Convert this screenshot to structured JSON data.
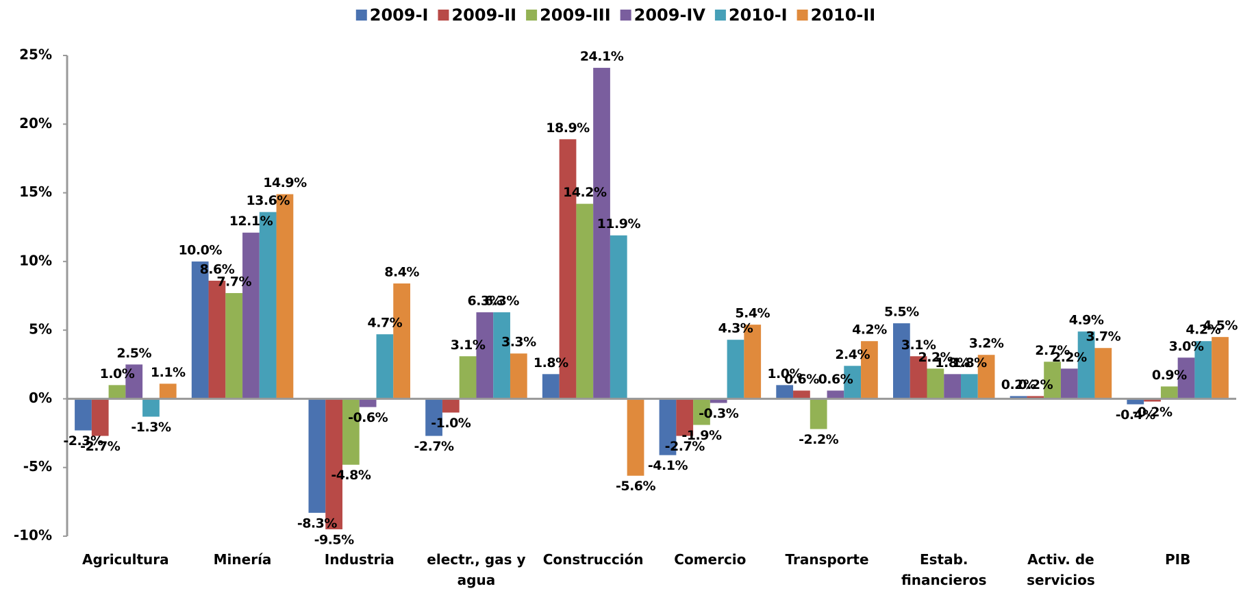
{
  "chart_data": {
    "type": "bar",
    "categories": [
      "Agricultura",
      "Minería",
      "Industria",
      "electr., gas y agua",
      "Construcción",
      "Comercio",
      "Transporte",
      "Estab. financieros",
      "Activ. de servicios",
      "PIB"
    ],
    "series": [
      {
        "name": "2009-I",
        "color": "#4a72b0",
        "label_color": "#000000",
        "values": [
          -2.3,
          10.0,
          -8.3,
          -2.7,
          1.8,
          -4.1,
          1.0,
          5.5,
          0.2,
          -0.4
        ],
        "value_labels": [
          "-2.3%",
          "10.0%",
          "-8.3%",
          "-2.7%",
          "1.8%",
          "-4.1%",
          "1.0%",
          "5.5%",
          "0.2%",
          "-0.4%"
        ]
      },
      {
        "name": "2009-II",
        "color": "#b84a47",
        "label_color": "#ff0000",
        "values": [
          -2.7,
          8.6,
          -9.5,
          -1.0,
          18.9,
          -2.7,
          0.6,
          3.1,
          0.2,
          -0.2
        ],
        "value_labels": [
          "-2.7%",
          "8.6%",
          "-9.5%",
          "-1.0%",
          "18.9%",
          "-2.7%",
          "0.6%",
          "3.1%",
          "0.2%",
          "-0.2%"
        ]
      },
      {
        "name": "2009-III",
        "color": "#93b254",
        "label_color": "#8fc34a",
        "values": [
          1.0,
          7.7,
          -4.8,
          3.1,
          14.2,
          -1.9,
          -2.2,
          2.2,
          2.7,
          0.9
        ],
        "value_labels": [
          "1.0%",
          "7.7%",
          "-4.8%",
          "3.1%",
          "14.2%",
          "-1.9%",
          "-2.2%",
          "2.2%",
          "2.7%",
          "0.9%"
        ]
      },
      {
        "name": "2009-IV",
        "color": "#7a5e9e",
        "label_color": "#9933ff",
        "values": [
          2.5,
          12.1,
          -0.6,
          6.3,
          24.1,
          -0.3,
          0.6,
          1.8,
          2.2,
          3.0
        ],
        "value_labels": [
          "2.5%",
          "12.1%",
          "-0.6%",
          "6.3%",
          "24.1%",
          "-0.3%",
          "0.6%",
          "1.8%",
          "2.2%",
          "3.0%"
        ]
      },
      {
        "name": "2010-I",
        "color": "#46a0b8",
        "label_color": "#00a6e6",
        "values": [
          -1.3,
          13.6,
          4.7,
          6.3,
          11.9,
          4.3,
          2.4,
          1.8,
          4.9,
          4.2
        ],
        "value_labels": [
          "-1.3%",
          "13.6%",
          "4.7%",
          "6.3%",
          "11.9%",
          "4.3%",
          "2.4%",
          "1.8%",
          "4.9%",
          "4.2%"
        ]
      },
      {
        "name": "2010-II",
        "color": "#e08a3c",
        "label_color": "#e46c0a",
        "values": [
          1.1,
          14.9,
          8.4,
          3.3,
          -5.6,
          5.4,
          4.2,
          3.2,
          3.7,
          4.5
        ],
        "value_labels": [
          "1.1%",
          "14.9%",
          "8.4%",
          "3.3%",
          "-5.6%",
          "5.4%",
          "4.2%",
          "3.2%",
          "3.7%",
          "4.5%"
        ]
      }
    ],
    "ylim": [
      -10,
      25
    ],
    "yticks": [
      {
        "value": -10,
        "label": "-10%"
      },
      {
        "value": -5,
        "label": "-5%"
      },
      {
        "value": 0,
        "label": "0%"
      },
      {
        "value": 5,
        "label": "5%"
      },
      {
        "value": 10,
        "label": "10%"
      },
      {
        "value": 15,
        "label": "15%"
      },
      {
        "value": 20,
        "label": "20%"
      },
      {
        "value": 25,
        "label": "25%"
      }
    ],
    "legend": "top",
    "grid": false
  }
}
